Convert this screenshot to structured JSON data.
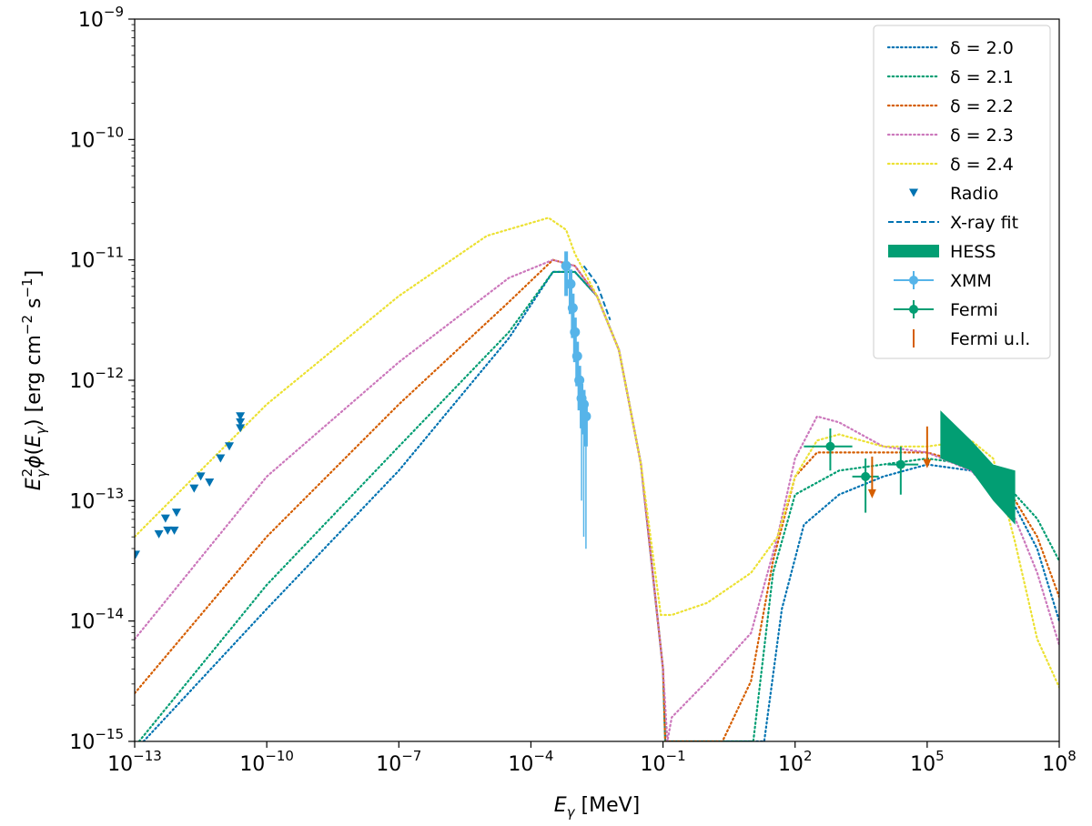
{
  "chart_data": {
    "type": "line",
    "xscale": "log",
    "yscale": "log",
    "xlim": [
      1e-13,
      100000000.0
    ],
    "ylim": [
      1e-15,
      1e-09
    ],
    "xlabel": "Eγ [MeV]",
    "ylabel": "Eγ² φ(Eγ) [erg cm⁻² s⁻¹]",
    "xticks": [
      {
        "base": "10",
        "exp": "−13",
        "value": -13
      },
      {
        "base": "10",
        "exp": "−10",
        "value": -10
      },
      {
        "base": "10",
        "exp": "−7",
        "value": -7
      },
      {
        "base": "10",
        "exp": "−4",
        "value": -4
      },
      {
        "base": "10",
        "exp": "−1",
        "value": -1
      },
      {
        "base": "10",
        "exp": "2",
        "value": 2
      },
      {
        "base": "10",
        "exp": "5",
        "value": 5
      },
      {
        "base": "10",
        "exp": "8",
        "value": 8
      }
    ],
    "yticks": [
      {
        "base": "10",
        "exp": "−9",
        "value": -9
      },
      {
        "base": "10",
        "exp": "−10",
        "value": -10
      },
      {
        "base": "10",
        "exp": "−11",
        "value": -11
      },
      {
        "base": "10",
        "exp": "−12",
        "value": -12
      },
      {
        "base": "10",
        "exp": "−13",
        "value": -13
      },
      {
        "base": "10",
        "exp": "−14",
        "value": -14
      },
      {
        "base": "10",
        "exp": "−15",
        "value": -15
      }
    ],
    "legend_position": "top-right",
    "legend": [
      {
        "label": "δ = 2.0",
        "kind": "dotted",
        "color": "#0173b2"
      },
      {
        "label": "δ = 2.1",
        "kind": "dotted",
        "color": "#029e73"
      },
      {
        "label": "δ = 2.2",
        "kind": "dotted",
        "color": "#d55e00"
      },
      {
        "label": "δ = 2.3",
        "kind": "dotted",
        "color": "#cc78bc"
      },
      {
        "label": "δ = 2.4",
        "kind": "dotted",
        "color": "#ece133"
      },
      {
        "label": "Radio",
        "kind": "triangle",
        "color": "#0173b2"
      },
      {
        "label": "X-ray fit",
        "kind": "dashed",
        "color": "#0173b2"
      },
      {
        "label": "HESS",
        "kind": "band",
        "color": "#029e73"
      },
      {
        "label": "XMM",
        "kind": "errorpoint",
        "color": "#56b4e9"
      },
      {
        "label": "Fermi",
        "kind": "errorpoint",
        "color": "#029e73"
      },
      {
        "label": "Fermi u.l.",
        "kind": "upperlimit",
        "color": "#d55e00"
      }
    ],
    "series": [
      {
        "name": "δ = 2.0",
        "color": "#0173b2",
        "points": [
          [
            -12.8,
            -15
          ],
          [
            -10,
            -13.9
          ],
          [
            -7,
            -12.75
          ],
          [
            -4.5,
            -11.65
          ],
          [
            -3.5,
            -11.1
          ],
          [
            -3,
            -11.1
          ],
          [
            -2.5,
            -11.3
          ],
          [
            -2,
            -11.75
          ],
          [
            -1.5,
            -12.7
          ],
          [
            -1,
            -14.4
          ],
          [
            -0.95,
            -15
          ],
          [
            1.3,
            -15
          ],
          [
            1.7,
            -13.9
          ],
          [
            2.2,
            -13.2
          ],
          [
            3,
            -12.95
          ],
          [
            4,
            -12.8
          ],
          [
            5,
            -12.7
          ],
          [
            6,
            -12.75
          ],
          [
            7,
            -13.05
          ],
          [
            7.5,
            -13.4
          ],
          [
            8,
            -14
          ]
        ]
      },
      {
        "name": "δ = 2.1",
        "color": "#029e73",
        "points": [
          [
            -12.9,
            -15
          ],
          [
            -10,
            -13.7
          ],
          [
            -7,
            -12.55
          ],
          [
            -4.5,
            -11.6
          ],
          [
            -3.5,
            -11.1
          ],
          [
            -3,
            -11.1
          ],
          [
            -2.5,
            -11.3
          ],
          [
            -2,
            -11.75
          ],
          [
            -1.5,
            -12.7
          ],
          [
            -1,
            -14.4
          ],
          [
            -0.95,
            -15
          ],
          [
            1.05,
            -15
          ],
          [
            1.5,
            -13.6
          ],
          [
            2,
            -12.95
          ],
          [
            3,
            -12.75
          ],
          [
            4,
            -12.7
          ],
          [
            5,
            -12.65
          ],
          [
            6,
            -12.7
          ],
          [
            7,
            -12.95
          ],
          [
            7.5,
            -13.15
          ],
          [
            8,
            -13.5
          ]
        ]
      },
      {
        "name": "δ = 2.2",
        "color": "#d55e00",
        "points": [
          [
            -13,
            -14.6
          ],
          [
            -10,
            -13.3
          ],
          [
            -7,
            -12.2
          ],
          [
            -4.5,
            -11.35
          ],
          [
            -3.5,
            -11.0
          ],
          [
            -3,
            -11.05
          ],
          [
            -2.5,
            -11.3
          ],
          [
            -2,
            -11.75
          ],
          [
            -1.5,
            -12.7
          ],
          [
            -1,
            -14.4
          ],
          [
            -0.95,
            -15
          ],
          [
            0.35,
            -15
          ],
          [
            1.0,
            -14.5
          ],
          [
            1.5,
            -13.5
          ],
          [
            2,
            -12.8
          ],
          [
            2.5,
            -12.6
          ],
          [
            3,
            -12.6
          ],
          [
            4,
            -12.6
          ],
          [
            5,
            -12.6
          ],
          [
            6,
            -12.7
          ],
          [
            7,
            -13.0
          ],
          [
            7.5,
            -13.3
          ],
          [
            8,
            -13.8
          ]
        ]
      },
      {
        "name": "δ = 2.3",
        "color": "#cc78bc",
        "points": [
          [
            -13,
            -14.15
          ],
          [
            -10,
            -12.8
          ],
          [
            -7,
            -11.85
          ],
          [
            -4.5,
            -11.15
          ],
          [
            -3.5,
            -11.0
          ],
          [
            -3,
            -11.05
          ],
          [
            -2.5,
            -11.3
          ],
          [
            -2,
            -11.75
          ],
          [
            -1.5,
            -12.7
          ],
          [
            -1,
            -14.4
          ],
          [
            -0.9,
            -15.0
          ],
          [
            -0.8,
            -14.8
          ],
          [
            0,
            -14.5
          ],
          [
            1,
            -14.1
          ],
          [
            1.6,
            -13.3
          ],
          [
            2,
            -12.65
          ],
          [
            2.5,
            -12.3
          ],
          [
            3,
            -12.35
          ],
          [
            4,
            -12.55
          ],
          [
            5,
            -12.6
          ],
          [
            6,
            -12.75
          ],
          [
            7,
            -13.15
          ],
          [
            7.5,
            -13.6
          ],
          [
            8,
            -14.2
          ]
        ]
      },
      {
        "name": "δ = 2.4",
        "color": "#ece133",
        "points": [
          [
            -13,
            -13.3
          ],
          [
            -10,
            -12.2
          ],
          [
            -7,
            -11.3
          ],
          [
            -5,
            -10.8
          ],
          [
            -3.6,
            -10.65
          ],
          [
            -3.2,
            -10.75
          ],
          [
            -3,
            -10.95
          ],
          [
            -2.5,
            -11.3
          ],
          [
            -2,
            -11.75
          ],
          [
            -1.5,
            -12.7
          ],
          [
            -1.05,
            -13.95
          ],
          [
            -0.8,
            -13.95
          ],
          [
            0,
            -13.85
          ],
          [
            1,
            -13.6
          ],
          [
            1.6,
            -13.3
          ],
          [
            2,
            -12.8
          ],
          [
            2.5,
            -12.5
          ],
          [
            3,
            -12.45
          ],
          [
            4,
            -12.55
          ],
          [
            5,
            -12.55
          ],
          [
            6,
            -12.5
          ],
          [
            6.5,
            -12.65
          ],
          [
            7,
            -13.35
          ],
          [
            7.5,
            -14.15
          ],
          [
            8,
            -14.55
          ]
        ]
      }
    ],
    "xray_fit": {
      "name": "X-ray fit",
      "color": "#0173b2",
      "points": [
        [
          -2.8,
          -11.05
        ],
        [
          -2.5,
          -11.2
        ],
        [
          -2.2,
          -11.5
        ]
      ]
    },
    "radio": {
      "name": "Radio",
      "color": "#0173b2",
      "points": [
        [
          -12.98,
          -13.45
        ],
        [
          -12.45,
          -13.28
        ],
        [
          -12.3,
          -13.15
        ],
        [
          -12.25,
          -13.25
        ],
        [
          -12.1,
          -13.25
        ],
        [
          -12.05,
          -13.1
        ],
        [
          -11.65,
          -12.9
        ],
        [
          -11.5,
          -12.8
        ],
        [
          -11.3,
          -12.85
        ],
        [
          -11.05,
          -12.65
        ],
        [
          -10.85,
          -12.55
        ],
        [
          -10.6,
          -12.4
        ],
        [
          -10.6,
          -12.35
        ],
        [
          -10.6,
          -12.3
        ]
      ]
    },
    "xmm": {
      "name": "XMM",
      "color": "#56b4e9",
      "points": [
        [
          -3.2,
          -11.05
        ],
        [
          -3.1,
          -11.2
        ],
        [
          -3.05,
          -11.4
        ],
        [
          -3.0,
          -11.6
        ],
        [
          -2.95,
          -11.8
        ],
        [
          -2.9,
          -12.0
        ],
        [
          -2.85,
          -12.15
        ],
        [
          -2.8,
          -12.2
        ],
        [
          -2.75,
          -12.3
        ]
      ],
      "err_low": [
        [
          -2.85,
          -13.0
        ],
        [
          -2.8,
          -13.3
        ],
        [
          -2.75,
          -13.4
        ]
      ]
    },
    "fermi": {
      "name": "Fermi",
      "color": "#029e73",
      "points": [
        [
          2.8,
          -12.55,
          2.2,
          3.3,
          -12.75,
          -12.4
        ],
        [
          3.6,
          -12.8,
          3.3,
          3.9,
          -13.1,
          -12.65
        ],
        [
          4.4,
          -12.7,
          4.1,
          4.8,
          -12.95,
          -12.55
        ]
      ]
    },
    "fermi_ul": {
      "name": "Fermi u.l.",
      "color": "#d55e00",
      "points": [
        [
          3.75,
          -12.8
        ],
        [
          5.0,
          -12.55
        ]
      ]
    },
    "hess": {
      "name": "HESS",
      "color": "#029e73",
      "upper": [
        [
          5.3,
          -12.25
        ],
        [
          6.0,
          -12.5
        ],
        [
          6.5,
          -12.7
        ],
        [
          7.0,
          -12.75
        ]
      ],
      "lower": [
        [
          5.3,
          -12.65
        ],
        [
          6.0,
          -12.75
        ],
        [
          6.5,
          -13.0
        ],
        [
          7.0,
          -13.2
        ]
      ]
    }
  }
}
